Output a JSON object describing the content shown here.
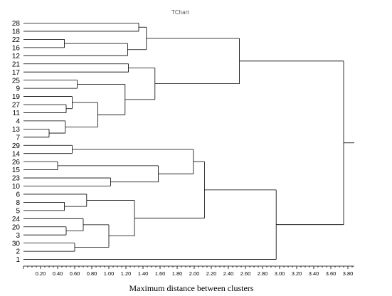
{
  "chart_data": {
    "type": "dendrogram",
    "title": "TChart",
    "xlabel": "Maximum distance between clusters",
    "xlim": [
      0,
      3.9
    ],
    "x_ticks": [
      "0.20",
      "0.40",
      "0.60",
      "0.80",
      "1.00",
      "1.20",
      "1.40",
      "1.60",
      "1.80",
      "2.00",
      "2.20",
      "2.40",
      "2.60",
      "2.80",
      "3.00",
      "3.20",
      "3.40",
      "3.60",
      "3.80"
    ],
    "leaves": [
      "28",
      "18",
      "22",
      "16",
      "12",
      "21",
      "17",
      "25",
      "9",
      "19",
      "27",
      "11",
      "4",
      "13",
      "7",
      "29",
      "14",
      "26",
      "15",
      "23",
      "10",
      "6",
      "8",
      "5",
      "24",
      "20",
      "3",
      "30",
      "2",
      "1"
    ],
    "merges": [
      {
        "a": "28",
        "b": "18",
        "height": 1.35
      },
      {
        "a": "22",
        "b": "16",
        "height": 0.48
      },
      {
        "a": "22+16",
        "b": "12",
        "height": 1.22
      },
      {
        "a": "28+18",
        "b": "22+16+12",
        "height": 1.44
      },
      {
        "a": "21",
        "b": "17",
        "height": 1.23
      },
      {
        "a": "25",
        "b": "9",
        "height": 0.63
      },
      {
        "a": "27",
        "b": "11",
        "height": 0.5
      },
      {
        "a": "19",
        "b": "27+11",
        "height": 0.57
      },
      {
        "a": "13",
        "b": "7",
        "height": 0.3
      },
      {
        "a": "4",
        "b": "13+7",
        "height": 0.49
      },
      {
        "a": "19+27+11",
        "b": "4+13+7",
        "height": 0.87
      },
      {
        "a": "25+9",
        "b": "19+27+11+4+13+7",
        "height": 1.19
      },
      {
        "a": "21+17",
        "b": "25+9+19+27+11+4+13+7",
        "height": 1.54
      },
      {
        "a": "28..12",
        "b": "21..7",
        "height": 2.53
      },
      {
        "a": "29",
        "b": "14",
        "height": 0.57
      },
      {
        "a": "26",
        "b": "15",
        "height": 0.4
      },
      {
        "a": "23",
        "b": "10",
        "height": 1.02
      },
      {
        "a": "26+15",
        "b": "23+10",
        "height": 1.58
      },
      {
        "a": "29+14",
        "b": "26+15+23+10",
        "height": 1.99
      },
      {
        "a": "8",
        "b": "5",
        "height": 0.48
      },
      {
        "a": "6",
        "b": "8+5",
        "height": 0.74
      },
      {
        "a": "20",
        "b": "3",
        "height": 0.5
      },
      {
        "a": "24",
        "b": "20+3",
        "height": 0.7
      },
      {
        "a": "30",
        "b": "2",
        "height": 0.6
      },
      {
        "a": "24+20+3",
        "b": "30+2",
        "height": 1.0
      },
      {
        "a": "6+8+5",
        "b": "24+20+3+30+2",
        "height": 1.3
      },
      {
        "a": "29..10",
        "b": "6..2",
        "height": 2.12
      },
      {
        "a": "29..2",
        "b": "1",
        "height": 2.96
      },
      {
        "a": "28..7",
        "b": "29..1",
        "height": 3.75
      }
    ]
  }
}
